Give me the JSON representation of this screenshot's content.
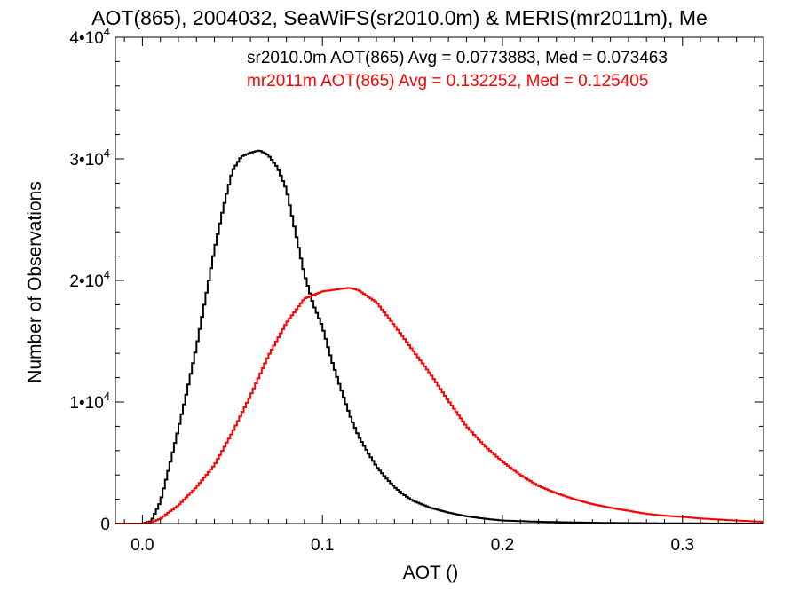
{
  "chart_data": {
    "type": "histogram",
    "title": "AOT(865), 2004032, SeaWiFS(sr2010.0m) & MERIS(mr2011m), Me",
    "xlabel": "AOT ()",
    "ylabel": "Number of Observations",
    "xlim": [
      -0.015,
      0.345
    ],
    "ylim": [
      0,
      40000
    ],
    "x_ticks": [
      {
        "value": 0.0,
        "label": "0.0"
      },
      {
        "value": 0.1,
        "label": "0.1"
      },
      {
        "value": 0.2,
        "label": "0.2"
      },
      {
        "value": 0.3,
        "label": "0.3"
      }
    ],
    "y_ticks": [
      {
        "value": 0,
        "label": "0"
      },
      {
        "value": 10000,
        "mantissa": "1",
        "base": "•10",
        "exp": "4"
      },
      {
        "value": 20000,
        "mantissa": "2",
        "base": "•10",
        "exp": "4"
      },
      {
        "value": 30000,
        "mantissa": "3",
        "base": "•10",
        "exp": "4"
      },
      {
        "value": 40000,
        "mantissa": "4",
        "base": "•10",
        "exp": "4"
      }
    ],
    "legend": [
      {
        "text": "sr2010.0m AOT(865) Avg = 0.0773883, Med = 0.073463",
        "color": "#000000"
      },
      {
        "text": "mr2011m AOT(865) Avg = 0.132252, Med = 0.125405",
        "color": "#ff0000"
      }
    ],
    "series": [
      {
        "color": "#000000",
        "x": [
          -0.015,
          0.0,
          0.005,
          0.01,
          0.015,
          0.02,
          0.025,
          0.03,
          0.035,
          0.04,
          0.045,
          0.05,
          0.055,
          0.06,
          0.065,
          0.07,
          0.075,
          0.08,
          0.085,
          0.09,
          0.095,
          0.1,
          0.105,
          0.11,
          0.115,
          0.12,
          0.125,
          0.13,
          0.135,
          0.14,
          0.145,
          0.15,
          0.16,
          0.17,
          0.18,
          0.19,
          0.2,
          0.22,
          0.24,
          0.26,
          0.28,
          0.3,
          0.32,
          0.345
        ],
        "y": [
          0,
          0,
          200,
          1800,
          4700,
          7800,
          11000,
          14500,
          18500,
          22500,
          26000,
          29000,
          30200,
          30500,
          30700,
          30300,
          29300,
          27500,
          24000,
          20500,
          18000,
          16200,
          13500,
          11200,
          9000,
          7200,
          5900,
          4700,
          3800,
          3000,
          2400,
          1900,
          1300,
          900,
          600,
          400,
          250,
          150,
          90,
          50,
          30,
          15,
          8,
          0
        ]
      },
      {
        "color": "#ff0000",
        "x": [
          -0.015,
          0.0,
          0.005,
          0.01,
          0.02,
          0.03,
          0.04,
          0.05,
          0.06,
          0.07,
          0.08,
          0.09,
          0.1,
          0.11,
          0.115,
          0.12,
          0.13,
          0.14,
          0.15,
          0.16,
          0.17,
          0.18,
          0.19,
          0.2,
          0.21,
          0.22,
          0.23,
          0.24,
          0.25,
          0.26,
          0.27,
          0.28,
          0.29,
          0.3,
          0.31,
          0.32,
          0.33,
          0.34,
          0.345
        ],
        "y": [
          0,
          0,
          100,
          400,
          1500,
          3000,
          4800,
          7500,
          10500,
          13800,
          16500,
          18500,
          19100,
          19300,
          19400,
          19200,
          18200,
          16300,
          14300,
          12300,
          10100,
          8000,
          6400,
          5100,
          4000,
          3100,
          2500,
          2000,
          1600,
          1300,
          1050,
          800,
          650,
          550,
          420,
          330,
          250,
          180,
          150
        ]
      }
    ]
  }
}
